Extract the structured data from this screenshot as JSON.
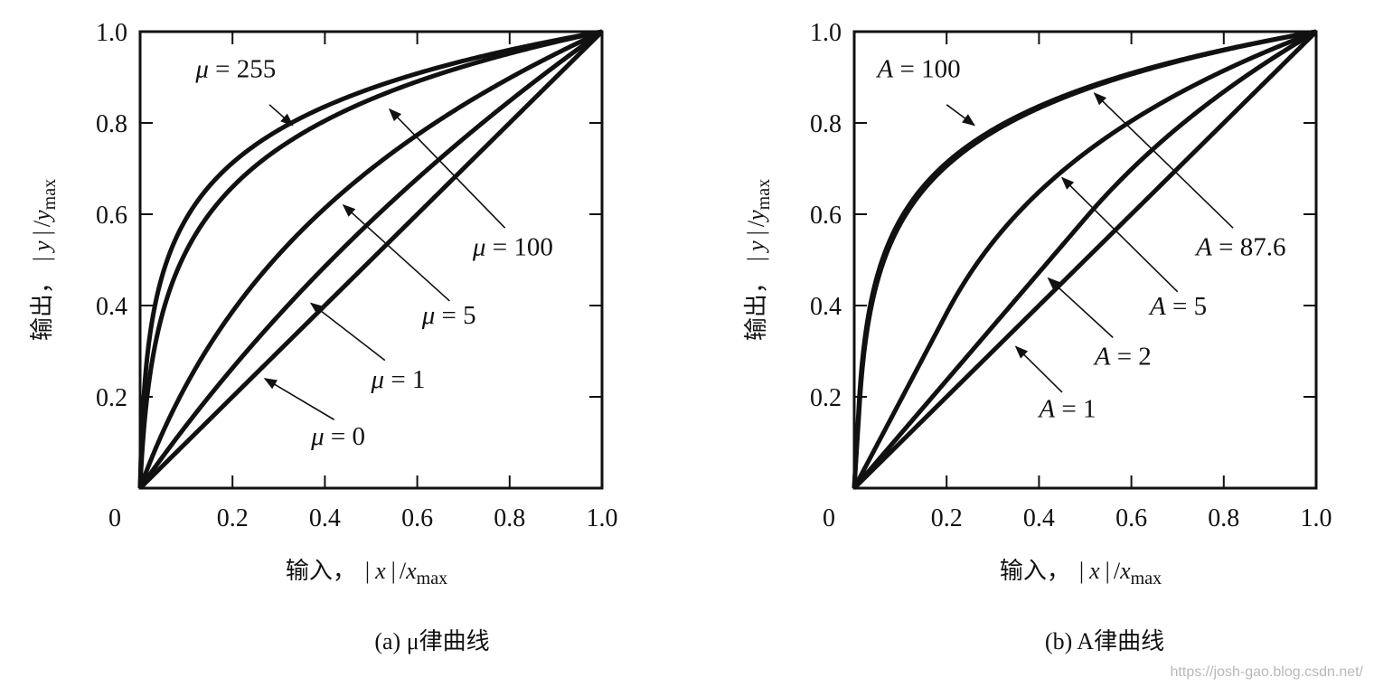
{
  "chart_data": [
    {
      "type": "line",
      "caption": "(a) μ律曲线",
      "xlabel": {
        "prefix": "输入，",
        "var": "x",
        "slash": "/",
        "base": "x",
        "sub": "max"
      },
      "ylabel": {
        "prefix": "输出，",
        "var": "y",
        "slash": "/",
        "base": "y",
        "sub": "max"
      },
      "xlim": [
        0,
        1.0
      ],
      "ylim": [
        0,
        1.0
      ],
      "x_tick_labels": [
        "0",
        "0.2",
        "0.4",
        "0.6",
        "0.8",
        "1.0"
      ],
      "y_tick_labels": [
        "0.2",
        "0.4",
        "0.6",
        "0.8",
        "1.0"
      ],
      "series": [
        {
          "param": 255,
          "label": {
            "sym": "μ",
            "eq": " = 255"
          },
          "label_x": 0.12,
          "label_y": 0.9,
          "arrow_from": [
            0.28,
            0.84
          ],
          "arrow_to": [
            0.33,
            0.795
          ]
        },
        {
          "param": 100,
          "label": {
            "sym": "μ",
            "eq": " = 100"
          },
          "label_x": 0.72,
          "label_y": 0.51,
          "arrow_from": [
            0.79,
            0.57
          ],
          "arrow_to": [
            0.54,
            0.83
          ]
        },
        {
          "param": 5,
          "label": {
            "sym": "μ",
            "eq": " = 5"
          },
          "label_x": 0.61,
          "label_y": 0.36,
          "arrow_from": [
            0.67,
            0.41
          ],
          "arrow_to": [
            0.44,
            0.62
          ]
        },
        {
          "param": 1,
          "label": {
            "sym": "μ",
            "eq": " = 1"
          },
          "label_x": 0.5,
          "label_y": 0.22,
          "arrow_from": [
            0.53,
            0.28
          ],
          "arrow_to": [
            0.37,
            0.405
          ]
        },
        {
          "param": 0,
          "label": {
            "sym": "μ",
            "eq": " = 0"
          },
          "label_x": 0.37,
          "label_y": 0.095,
          "arrow_from": [
            0.42,
            0.15
          ],
          "arrow_to": [
            0.27,
            0.24
          ]
        }
      ]
    },
    {
      "type": "line",
      "caption": "(b) A律曲线",
      "xlabel": {
        "prefix": "输入，",
        "var": "x",
        "slash": "/",
        "base": "x",
        "sub": "max"
      },
      "ylabel": {
        "prefix": "输出，",
        "var": "y",
        "slash": "/",
        "base": "y",
        "sub": "max"
      },
      "xlim": [
        0,
        1.0
      ],
      "ylim": [
        0,
        1.0
      ],
      "x_tick_labels": [
        "0",
        "0.2",
        "0.4",
        "0.6",
        "0.8",
        "1.0"
      ],
      "y_tick_labels": [
        "0.2",
        "0.4",
        "0.6",
        "0.8",
        "1.0"
      ],
      "series": [
        {
          "param": 100,
          "label": {
            "sym": "A",
            "eq": " = 100"
          },
          "label_x": 0.05,
          "label_y": 0.9,
          "arrow_from": [
            0.2,
            0.84
          ],
          "arrow_to": [
            0.26,
            0.795
          ]
        },
        {
          "param": 87.6,
          "label": {
            "sym": "A",
            "eq": " = 87.6"
          },
          "label_x": 0.74,
          "label_y": 0.51,
          "arrow_from": [
            0.82,
            0.57
          ],
          "arrow_to": [
            0.52,
            0.865
          ]
        },
        {
          "param": 5,
          "label": {
            "sym": "A",
            "eq": " = 5"
          },
          "label_x": 0.64,
          "label_y": 0.38,
          "arrow_from": [
            0.7,
            0.43
          ],
          "arrow_to": [
            0.45,
            0.68
          ]
        },
        {
          "param": 2,
          "label": {
            "sym": "A",
            "eq": " = 2"
          },
          "label_x": 0.52,
          "label_y": 0.27,
          "arrow_from": [
            0.56,
            0.33
          ],
          "arrow_to": [
            0.42,
            0.46
          ]
        },
        {
          "param": 1,
          "label": {
            "sym": "A",
            "eq": " = 1"
          },
          "label_x": 0.4,
          "label_y": 0.155,
          "arrow_from": [
            0.45,
            0.21
          ],
          "arrow_to": [
            0.35,
            0.31
          ]
        }
      ]
    }
  ],
  "watermark": "https://josh-gao.blog.csdn.net/"
}
